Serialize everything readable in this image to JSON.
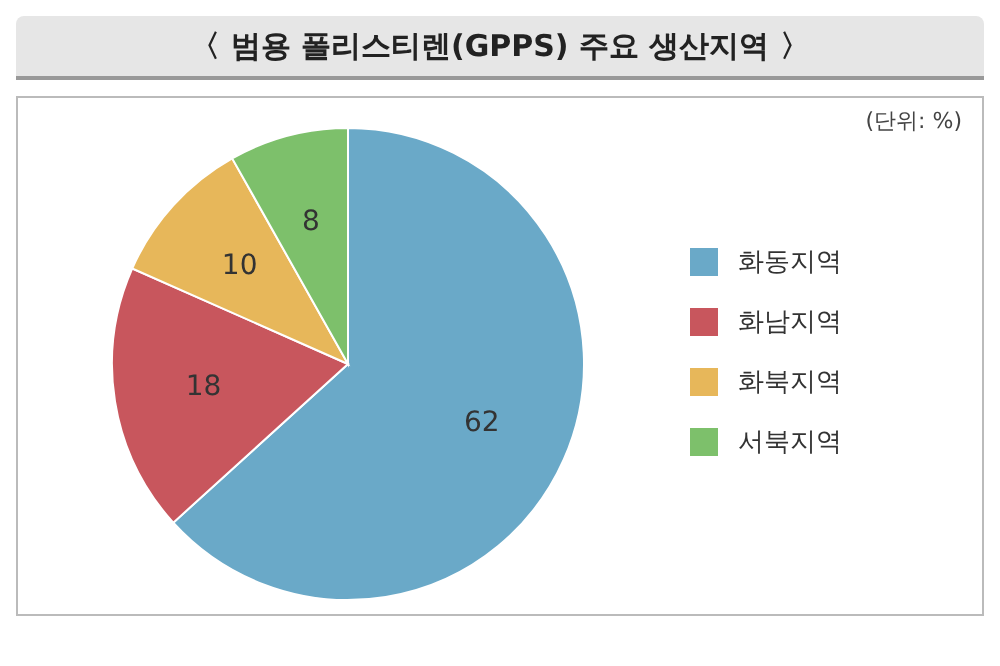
{
  "chart_data": {
    "type": "pie",
    "title": "〈 범용 폴리스티렌(GPPS) 주요 생산지역 〉",
    "subtitle": "(단위: %)",
    "categories": [
      "화동지역",
      "화남지역",
      "화북지역",
      "서북지역"
    ],
    "values": [
      62,
      18,
      10,
      8
    ],
    "colors": [
      "#6aa9c8",
      "#c8565d",
      "#e7b75a",
      "#7dc06b"
    ],
    "data_labels": true,
    "legend": "right"
  }
}
